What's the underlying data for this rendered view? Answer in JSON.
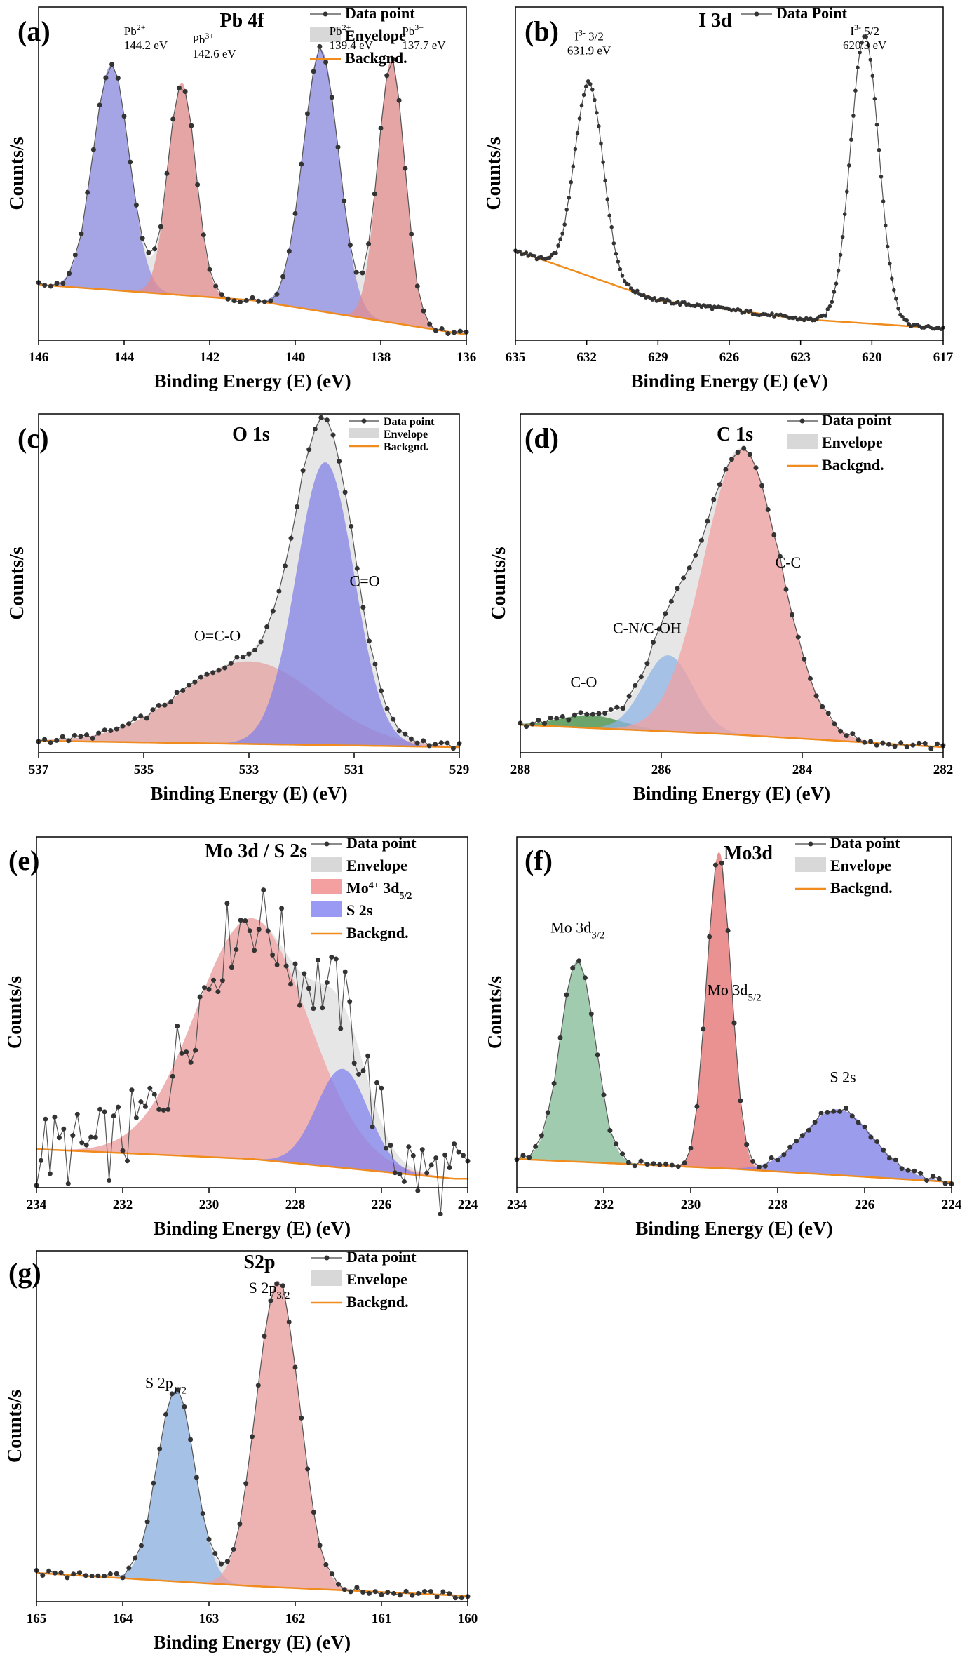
{
  "figure": {
    "panels_count": 7
  },
  "chart_data": [
    {
      "id": "a",
      "type": "line",
      "letter": "(a)",
      "title": "Pb 4f",
      "xlabel": "Binding Energy (E) (eV)",
      "ylabel": "Counts/s",
      "xlim": [
        146,
        136
      ],
      "xticks": [
        146,
        144,
        142,
        140,
        138,
        136
      ],
      "legend": [
        "Data point",
        "Envelope",
        "Backgnd."
      ],
      "baseline": [
        [
          146,
          0.16
        ],
        [
          141,
          0.11
        ],
        [
          136,
          0.0
        ]
      ],
      "components": [
        {
          "name": "Pb2+ 4f5/2",
          "center": 144.3,
          "height": 0.72,
          "width": 0.42,
          "color": "#8c8ce6"
        },
        {
          "name": "Pb3+ 4f5/2",
          "center": 142.65,
          "height": 0.68,
          "width": 0.32,
          "color": "#e68c8c"
        },
        {
          "name": "Pb2+ 4f7/2",
          "center": 139.4,
          "height": 0.84,
          "width": 0.42,
          "color": "#8c8ce6"
        },
        {
          "name": "Pb3+ 4f7/2",
          "center": 137.75,
          "height": 0.84,
          "width": 0.32,
          "color": "#e68c8c"
        }
      ],
      "annotations": [
        {
          "label": "Pb",
          "sup": "2+",
          "value": "144.2 eV",
          "x": 144.2
        },
        {
          "label": "Pb",
          "sup": "3+",
          "value": "142.6 eV",
          "x": 142.6
        },
        {
          "label": "Pb",
          "sup": "2+",
          "value": "139.4 eV",
          "x": 139.4
        },
        {
          "label": "Pb",
          "sup": "3+",
          "value": "137.7 eV",
          "x": 137.7
        }
      ]
    },
    {
      "id": "b",
      "type": "line",
      "letter": "(b)",
      "title": "I 3d",
      "xlabel": "Binding Energy (E) (eV)",
      "ylabel": "Counts/s",
      "xlim": [
        635,
        617
      ],
      "xticks": [
        635,
        632,
        629,
        626,
        623,
        620,
        617
      ],
      "legend": [
        "Data Point"
      ],
      "baseline": [
        [
          635,
          0.27
        ],
        [
          629,
          0.11
        ],
        [
          623,
          0.05
        ],
        [
          617,
          0.02
        ]
      ],
      "components": [
        {
          "name": "I 3d3/2",
          "center": 631.9,
          "height": 0.62,
          "width": 0.6,
          "color": "none"
        },
        {
          "name": "I 3d5/2",
          "center": 620.3,
          "height": 0.92,
          "width": 0.6,
          "color": "none"
        }
      ],
      "annotations": [
        {
          "label": "I",
          "sup": "3-",
          "value": "3/2",
          "value2": "631.9 eV",
          "x": 631.9
        },
        {
          "label": "I",
          "sup": "3-",
          "value": "5/2",
          "value2": "620.3 eV",
          "x": 620.3
        }
      ]
    },
    {
      "id": "c",
      "type": "line",
      "letter": "(c)",
      "title": "O 1s",
      "xlabel": "Binding Energy (E) (eV)",
      "ylabel": "Counts/s",
      "xlim": [
        537,
        529
      ],
      "xticks": [
        537,
        535,
        533,
        531,
        529
      ],
      "legend": [
        "Data point",
        "Envelope",
        "Backgnd."
      ],
      "baseline": [
        [
          537,
          0.02
        ],
        [
          529,
          0.0
        ]
      ],
      "components": [
        {
          "name": "O=C-O",
          "center": 533.0,
          "height": 0.26,
          "width": 1.3,
          "color": "#e6a0a0"
        },
        {
          "name": "C=O",
          "center": 531.55,
          "height": 0.89,
          "width": 0.55,
          "color": "#8080e6"
        }
      ],
      "annotations": [
        {
          "label": "O=C-O",
          "x": 533.6
        },
        {
          "label": "C=O",
          "x": 530.8
        }
      ]
    },
    {
      "id": "d",
      "type": "line",
      "letter": "(d)",
      "title": "C 1s",
      "xlabel": "Binding Energy (E) (eV)",
      "ylabel": "Counts/s",
      "xlim": [
        288,
        282
      ],
      "xticks": [
        288,
        286,
        284,
        282
      ],
      "legend": [
        "Data point",
        "Envelope",
        "Backgnd."
      ],
      "baseline": [
        [
          288,
          0.07
        ],
        [
          285,
          0.04
        ],
        [
          282,
          0.0
        ]
      ],
      "components": [
        {
          "name": "C-O",
          "center": 287.0,
          "height": 0.04,
          "width": 0.45,
          "color": "#3c8c3c"
        },
        {
          "name": "C-N/C-OH",
          "center": 285.9,
          "height": 0.24,
          "width": 0.35,
          "color": "#8cb4e6"
        },
        {
          "name": "C-C",
          "center": 284.85,
          "height": 0.9,
          "width": 0.55,
          "color": "#f4a0a0"
        }
      ],
      "annotations": [
        {
          "label": "C-O",
          "x": 287.1
        },
        {
          "label": "C-N/C-OH",
          "x": 286.2
        },
        {
          "label": "C-C",
          "x": 284.2
        }
      ]
    },
    {
      "id": "e",
      "type": "line",
      "letter": "(e)",
      "title": "Mo 3d / S 2s",
      "xlabel": "Binding Energy (E) (eV)",
      "ylabel": "Counts/s",
      "xlim": [
        234,
        224
      ],
      "xticks": [
        234,
        232,
        230,
        228,
        226,
        224
      ],
      "legend": [
        "Data point",
        "Envelope",
        "Mo4+ 3d5/2",
        "S 2s",
        "Backgnd."
      ],
      "baseline": [
        [
          234,
          0.1
        ],
        [
          229,
          0.07
        ],
        [
          224.3,
          0.01
        ]
      ],
      "components": [
        {
          "name": "Mo4+ 3d5/2",
          "center": 229.0,
          "height": 0.73,
          "width": 1.3,
          "color": "#f4a0a0"
        },
        {
          "name": "S 2s",
          "center": 226.9,
          "height": 0.3,
          "width": 0.6,
          "color": "#8080f0"
        }
      ],
      "annotations": []
    },
    {
      "id": "f",
      "type": "line",
      "letter": "(f)",
      "title": "Mo3d",
      "xlabel": "Binding Energy (E) (eV)",
      "ylabel": "Counts/s",
      "xlim": [
        234,
        224
      ],
      "xticks": [
        234,
        232,
        230,
        228,
        226,
        224
      ],
      "legend": [
        "Data point",
        "Envelope",
        "Backgnd."
      ],
      "baseline": [
        [
          234,
          0.07
        ],
        [
          229,
          0.04
        ],
        [
          224,
          0.0
        ]
      ],
      "components": [
        {
          "name": "Mo 3d3/2",
          "center": 232.6,
          "height": 0.61,
          "width": 0.4,
          "color": "#86c09a"
        },
        {
          "name": "Mo 3d5/2",
          "center": 229.35,
          "height": 0.96,
          "width": 0.28,
          "color": "#ec7070"
        },
        {
          "name": "S 2s",
          "center": 226.6,
          "height": 0.2,
          "width": 0.8,
          "color": "#8080f0"
        }
      ],
      "annotations": [
        {
          "label": "Mo 3d",
          "sub": "3/2",
          "x": 232.6
        },
        {
          "label": "Mo 3d",
          "sub": "5/2",
          "x": 229.0
        },
        {
          "label": "S 2s",
          "x": 226.5
        }
      ]
    },
    {
      "id": "g",
      "type": "line",
      "letter": "(g)",
      "title": "S2p",
      "xlabel": "Binding Energy (E) (eV)",
      "ylabel": "Counts/s",
      "xlim": [
        165,
        160
      ],
      "xticks": [
        165,
        164,
        163,
        162,
        161,
        160
      ],
      "legend": [
        "Data point",
        "Envelope",
        "Backgnd."
      ],
      "baseline": [
        [
          165,
          0.07
        ],
        [
          162.5,
          0.03
        ],
        [
          160,
          0.0
        ]
      ],
      "components": [
        {
          "name": "S 2p1/2",
          "center": 163.38,
          "height": 0.58,
          "width": 0.22,
          "color": "#8cb4e6"
        },
        {
          "name": "S 2p3/2",
          "center": 162.2,
          "height": 0.93,
          "width": 0.25,
          "color": "#f0a0a0"
        }
      ],
      "annotations": [
        {
          "label": "S 2p",
          "sub": "1/2",
          "x": 163.5
        },
        {
          "label": "S 2p",
          "sub": "3/2",
          "x": 162.3
        }
      ]
    }
  ]
}
